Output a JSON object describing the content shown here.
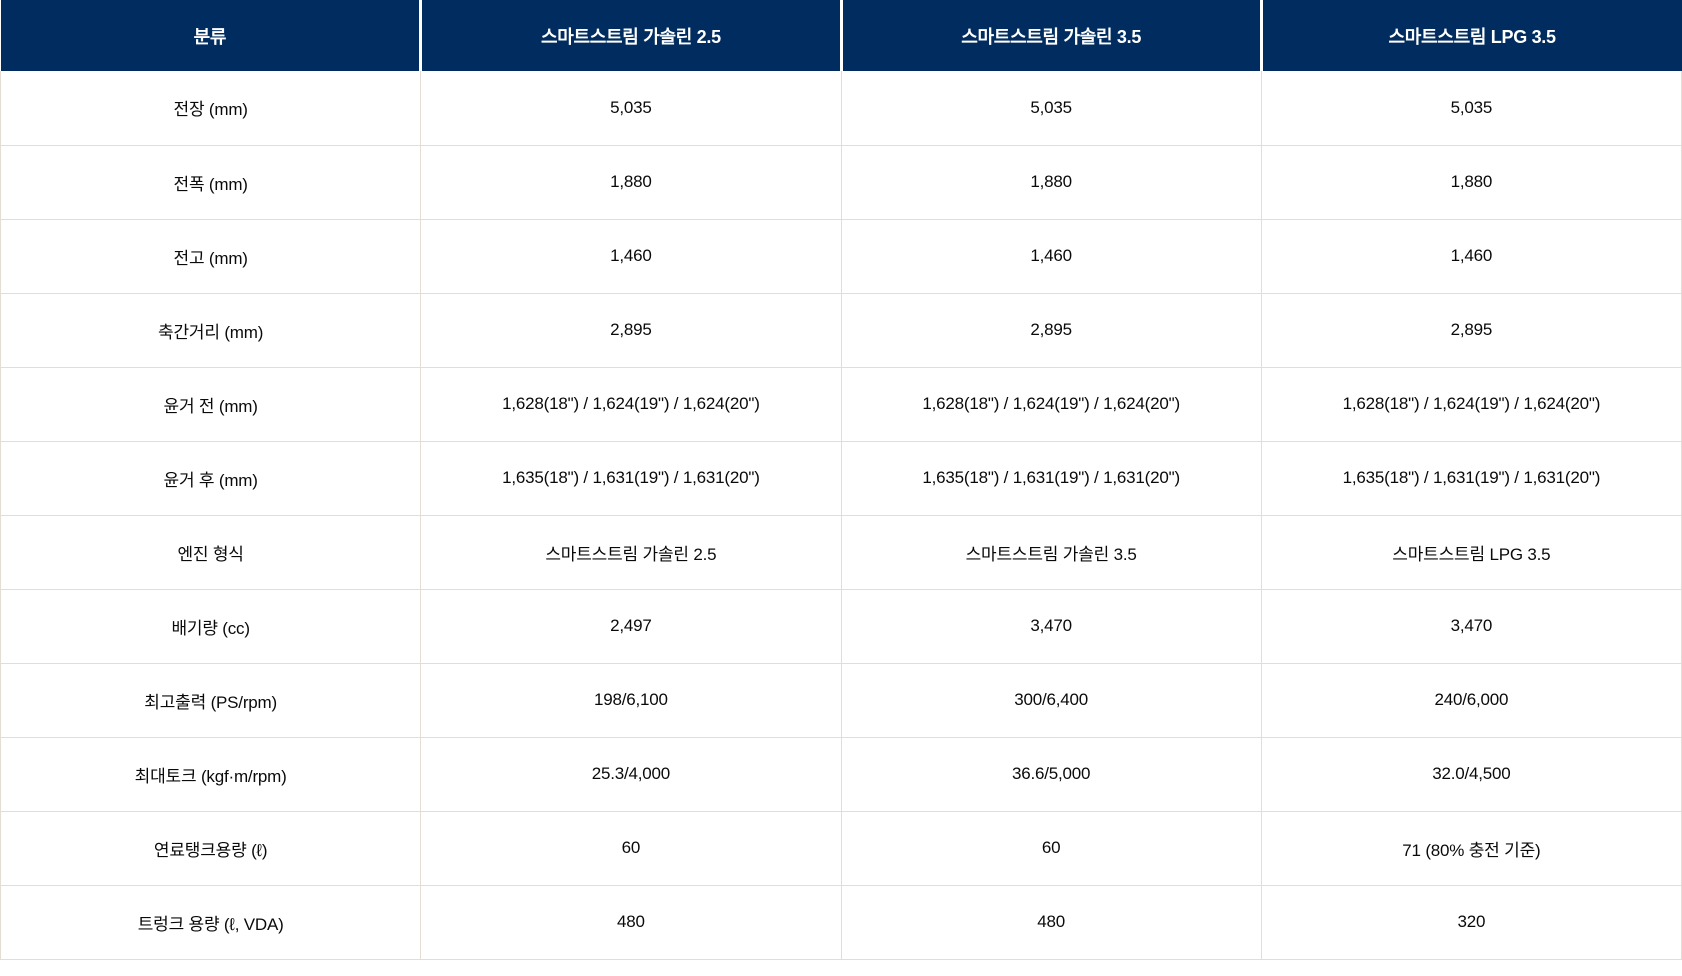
{
  "colors": {
    "header_bg": "#002c5f",
    "header_text": "#ffffff",
    "grid": "#e4ddd4",
    "body_text": "#0a0a0a"
  },
  "table": {
    "columns": [
      "분류",
      "스마트스트림 가솔린 2.5",
      "스마트스트림 가솔린 3.5",
      "스마트스트림 LPG 3.5"
    ],
    "rows": [
      {
        "label": "전장 (mm)",
        "values": [
          "5,035",
          "5,035",
          "5,035"
        ]
      },
      {
        "label": "전폭 (mm)",
        "values": [
          "1,880",
          "1,880",
          "1,880"
        ]
      },
      {
        "label": "전고 (mm)",
        "values": [
          "1,460",
          "1,460",
          "1,460"
        ]
      },
      {
        "label": "축간거리 (mm)",
        "values": [
          "2,895",
          "2,895",
          "2,895"
        ]
      },
      {
        "label": "윤거 전 (mm)",
        "values": [
          "1,628(18\") / 1,624(19\") / 1,624(20\")",
          "1,628(18\") / 1,624(19\") / 1,624(20\")",
          "1,628(18\") / 1,624(19\") / 1,624(20\")"
        ]
      },
      {
        "label": "윤거 후 (mm)",
        "values": [
          "1,635(18\") / 1,631(19\") / 1,631(20\")",
          "1,635(18\") / 1,631(19\") / 1,631(20\")",
          "1,635(18\") / 1,631(19\") / 1,631(20\")"
        ]
      },
      {
        "label": "엔진 형식",
        "values": [
          "스마트스트림 가솔린 2.5",
          "스마트스트림 가솔린 3.5",
          "스마트스트림 LPG 3.5"
        ]
      },
      {
        "label": "배기량 (cc)",
        "values": [
          "2,497",
          "3,470",
          "3,470"
        ]
      },
      {
        "label": "최고출력 (PS/rpm)",
        "values": [
          "198/6,100",
          "300/6,400",
          "240/6,000"
        ]
      },
      {
        "label": "최대토크 (kgf·m/rpm)",
        "values": [
          "25.3/4,000",
          "36.6/5,000",
          "32.0/4,500"
        ]
      },
      {
        "label": "연료탱크용량 (ℓ)",
        "values": [
          "60",
          "60",
          "71 (80% 충전 기준)"
        ]
      },
      {
        "label": "트렁크 용량 (ℓ, VDA)",
        "values": [
          "480",
          "480",
          "320"
        ]
      }
    ]
  }
}
